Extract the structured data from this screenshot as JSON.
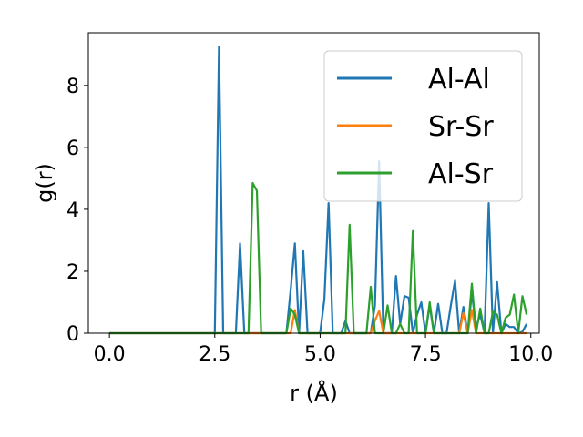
{
  "chart_data": {
    "type": "line",
    "title": "",
    "xlabel": "r (Å)",
    "ylabel": "g(r)",
    "xlim": [
      -0.5,
      10.2
    ],
    "ylim": [
      0,
      9.7
    ],
    "xticks": [
      0.0,
      2.5,
      5.0,
      7.5,
      10.0
    ],
    "xtick_labels": [
      "0.0",
      "2.5",
      "5.0",
      "7.5",
      "10.0"
    ],
    "yticks": [
      0,
      2,
      4,
      6,
      8
    ],
    "ytick_labels": [
      "0",
      "2",
      "4",
      "6",
      "8"
    ],
    "grid": false,
    "legend_position": "top-right",
    "series": [
      {
        "name": "Al-Al",
        "color": "#1f77b4",
        "x": [
          0.0,
          2.5,
          2.6,
          2.7,
          3.0,
          3.1,
          3.2,
          4.2,
          4.3,
          4.4,
          4.5,
          4.6,
          4.7,
          5.0,
          5.1,
          5.2,
          5.3,
          5.5,
          5.6,
          5.7,
          5.8,
          6.2,
          6.3,
          6.4,
          6.5,
          6.7,
          6.8,
          6.9,
          7.0,
          7.1,
          7.2,
          7.3,
          7.4,
          7.5,
          7.6,
          7.7,
          7.8,
          7.9,
          8.0,
          8.1,
          8.2,
          8.3,
          8.4,
          8.5,
          8.6,
          8.7,
          8.8,
          8.9,
          9.0,
          9.1,
          9.2,
          9.3,
          9.4,
          9.5,
          9.6,
          9.7,
          9.8,
          9.9
        ],
        "y": [
          0.0,
          0.0,
          9.25,
          0.0,
          0.0,
          2.9,
          0.0,
          0.0,
          1.4,
          2.9,
          0.0,
          2.65,
          0.0,
          0.0,
          1.1,
          4.2,
          0.0,
          0.0,
          0.4,
          0.0,
          0.0,
          0.0,
          0.9,
          5.55,
          0.0,
          0.0,
          1.85,
          0.3,
          1.2,
          1.15,
          0.0,
          0.6,
          1.0,
          0.0,
          0.9,
          0.0,
          0.95,
          0.0,
          0.0,
          0.9,
          1.7,
          0.0,
          0.85,
          0.0,
          1.3,
          0.2,
          0.6,
          0.0,
          4.2,
          0.0,
          1.65,
          0.0,
          0.3,
          0.2,
          0.2,
          0.0,
          0.05,
          0.3
        ]
      },
      {
        "name": "Sr-Sr",
        "color": "#ff7f0e",
        "x": [
          0.0,
          4.3,
          4.4,
          4.5,
          6.2,
          6.3,
          6.4,
          6.5,
          8.3,
          8.4,
          8.5,
          8.6,
          8.7,
          8.8,
          9.9
        ],
        "y": [
          0.0,
          0.0,
          0.75,
          0.0,
          0.0,
          0.4,
          0.72,
          0.0,
          0.0,
          0.65,
          0.0,
          0.75,
          0.0,
          0.0,
          0.0
        ]
      },
      {
        "name": "Al-Sr",
        "color": "#2ca02c",
        "x": [
          0.0,
          3.3,
          3.4,
          3.5,
          3.6,
          4.2,
          4.3,
          4.4,
          4.5,
          5.6,
          5.7,
          5.8,
          6.1,
          6.2,
          6.3,
          6.5,
          6.6,
          6.7,
          6.8,
          6.9,
          7.0,
          7.1,
          7.2,
          7.3,
          7.4,
          7.5,
          7.6,
          7.7,
          7.8,
          7.9,
          8.0,
          8.4,
          8.5,
          8.6,
          8.7,
          8.8,
          8.9,
          9.0,
          9.1,
          9.2,
          9.3,
          9.4,
          9.5,
          9.6,
          9.7,
          9.8,
          9.9
        ],
        "y": [
          0.0,
          0.0,
          4.85,
          4.6,
          0.0,
          0.0,
          0.8,
          0.6,
          0.0,
          0.0,
          3.5,
          0.0,
          0.0,
          1.5,
          0.0,
          0.0,
          0.9,
          0.0,
          0.0,
          0.3,
          0.0,
          0.0,
          3.3,
          0.0,
          0.0,
          0.0,
          1.0,
          0.0,
          0.0,
          0.0,
          0.0,
          0.0,
          0.0,
          1.6,
          0.0,
          0.8,
          0.0,
          0.0,
          0.7,
          0.6,
          0.0,
          0.5,
          0.6,
          1.25,
          0.0,
          1.2,
          0.6
        ]
      }
    ]
  }
}
